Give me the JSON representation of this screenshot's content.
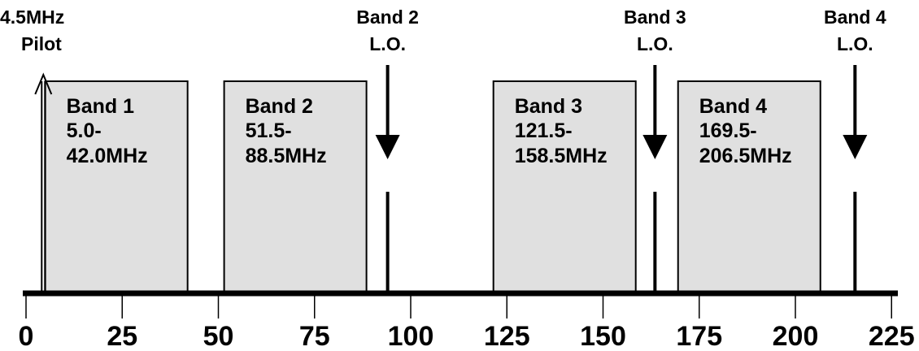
{
  "chart_data": {
    "type": "spectrum",
    "axis": {
      "ticks": [
        0,
        25,
        50,
        75,
        100,
        125,
        150,
        175,
        200,
        225
      ],
      "tick_labels": [
        "0",
        "25",
        "50",
        "75",
        "100",
        "125",
        "150",
        "175",
        "200",
        "225"
      ]
    },
    "bands": [
      {
        "label": "Band 1",
        "range_line1": "5.0-",
        "range_line2": "42.0MHz",
        "start": 5.0,
        "end": 42.0
      },
      {
        "label": "Band 2",
        "range_line1": "51.5-",
        "range_line2": "88.5MHz",
        "start": 51.5,
        "end": 88.5
      },
      {
        "label": "Band 3",
        "range_line1": "121.5-",
        "range_line2": "158.5MHz",
        "start": 121.5,
        "end": 158.5
      },
      {
        "label": "Band 4",
        "range_line1": "169.5-",
        "range_line2": "206.5MHz",
        "start": 169.5,
        "end": 206.5
      }
    ],
    "pilot": {
      "line1": "4.5MHz",
      "line2": "Pilot",
      "freq": 4.5
    },
    "local_oscillators": [
      {
        "line1": "Band 2",
        "line2": "L.O.",
        "freq": 94.0
      },
      {
        "line1": "Band 3",
        "line2": "L.O.",
        "freq": 163.5
      },
      {
        "line1": "Band 4",
        "line2": "L.O.",
        "freq": 215.5
      }
    ],
    "colors": {
      "band_fill": "#e0e0e0",
      "line": "#000000"
    }
  }
}
